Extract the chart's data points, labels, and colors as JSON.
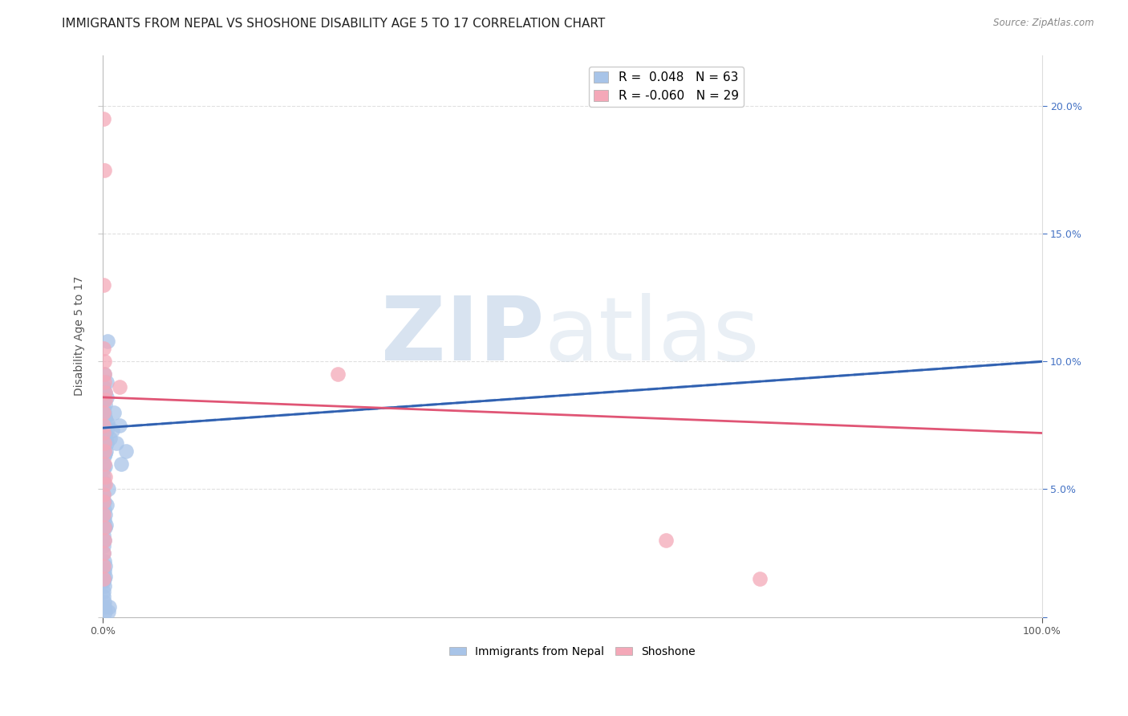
{
  "title": "IMMIGRANTS FROM NEPAL VS SHOSHONE DISABILITY AGE 5 TO 17 CORRELATION CHART",
  "source": "Source: ZipAtlas.com",
  "ylabel": "Disability Age 5 to 17",
  "xlim": [
    0,
    1.0
  ],
  "ylim": [
    0,
    0.22
  ],
  "xticks": [
    0.0,
    1.0
  ],
  "xtick_labels": [
    "0.0%",
    "100.0%"
  ],
  "yticks": [
    0.0,
    0.05,
    0.1,
    0.15,
    0.2
  ],
  "ytick_labels_right": [
    "",
    "5.0%",
    "10.0%",
    "15.0%",
    "20.0%"
  ],
  "legend_blue_r": "R =  0.048",
  "legend_blue_n": "N = 63",
  "legend_pink_r": "R = -0.060",
  "legend_pink_n": "N = 29",
  "blue_color": "#A8C4E8",
  "pink_color": "#F4A8B8",
  "trend_blue_solid_color": "#3060B0",
  "trend_pink_solid_color": "#E05575",
  "trend_blue_dash_color": "#A8C4E8",
  "grid_color": "#E0E0E0",
  "axis_label_color": "#555555",
  "right_tick_color": "#4472C4",
  "title_fontsize": 11,
  "axis_fontsize": 9,
  "tick_fontsize": 9,
  "blue_scatter_x": [
    0.0008,
    0.001,
    0.0012,
    0.0015,
    0.0018,
    0.002,
    0.0022,
    0.0025,
    0.0028,
    0.003,
    0.0032,
    0.0035,
    0.0038,
    0.004,
    0.0042,
    0.0045,
    0.0048,
    0.005,
    0.0008,
    0.001,
    0.0012,
    0.0015,
    0.0018,
    0.002,
    0.0025,
    0.003,
    0.0008,
    0.001,
    0.0012,
    0.0015,
    0.0018,
    0.002,
    0.0025,
    0.003,
    0.0008,
    0.001,
    0.0012,
    0.0015,
    0.0018,
    0.002,
    0.0022,
    0.0025,
    0.0008,
    0.001,
    0.0012,
    0.0015,
    0.0018,
    0.002,
    0.0025,
    0.003,
    0.0035,
    0.004,
    0.005,
    0.006,
    0.008,
    0.01,
    0.015,
    0.02,
    0.025,
    0.018,
    0.012,
    0.007,
    0.006
  ],
  "blue_scatter_y": [
    0.09,
    0.085,
    0.082,
    0.095,
    0.08,
    0.075,
    0.072,
    0.078,
    0.088,
    0.083,
    0.077,
    0.07,
    0.065,
    0.092,
    0.086,
    0.073,
    0.068,
    0.076,
    0.06,
    0.055,
    0.058,
    0.063,
    0.067,
    0.071,
    0.064,
    0.059,
    0.052,
    0.048,
    0.053,
    0.045,
    0.042,
    0.038,
    0.035,
    0.04,
    0.032,
    0.028,
    0.025,
    0.03,
    0.022,
    0.018,
    0.015,
    0.02,
    0.014,
    0.01,
    0.008,
    0.012,
    0.006,
    0.004,
    0.016,
    0.002,
    0.036,
    0.044,
    0.108,
    0.05,
    0.07,
    0.073,
    0.068,
    0.06,
    0.065,
    0.075,
    0.08,
    0.004,
    0.002
  ],
  "pink_scatter_x": [
    0.0008,
    0.001,
    0.0012,
    0.0015,
    0.0018,
    0.002,
    0.0025,
    0.003,
    0.0008,
    0.001,
    0.0012,
    0.0015,
    0.0018,
    0.002,
    0.0025,
    0.003,
    0.0008,
    0.001,
    0.0012,
    0.0015,
    0.0018,
    0.002,
    0.0008,
    0.001,
    0.0012,
    0.018,
    0.6,
    0.7,
    0.25
  ],
  "pink_scatter_y": [
    0.195,
    0.13,
    0.105,
    0.1,
    0.095,
    0.092,
    0.088,
    0.085,
    0.08,
    0.075,
    0.072,
    0.065,
    0.068,
    0.06,
    0.055,
    0.052,
    0.048,
    0.045,
    0.04,
    0.035,
    0.03,
    0.175,
    0.025,
    0.02,
    0.015,
    0.09,
    0.03,
    0.015,
    0.095
  ],
  "blue_trend_x0": 0.0,
  "blue_trend_x1": 1.0,
  "blue_trend_y0": 0.074,
  "blue_trend_y1": 0.1,
  "pink_trend_x0": 0.0,
  "pink_trend_x1": 1.0,
  "pink_trend_y0": 0.086,
  "pink_trend_y1": 0.072,
  "watermark_zip_color": "#B8CCE4",
  "watermark_atlas_color": "#C8D8E8"
}
